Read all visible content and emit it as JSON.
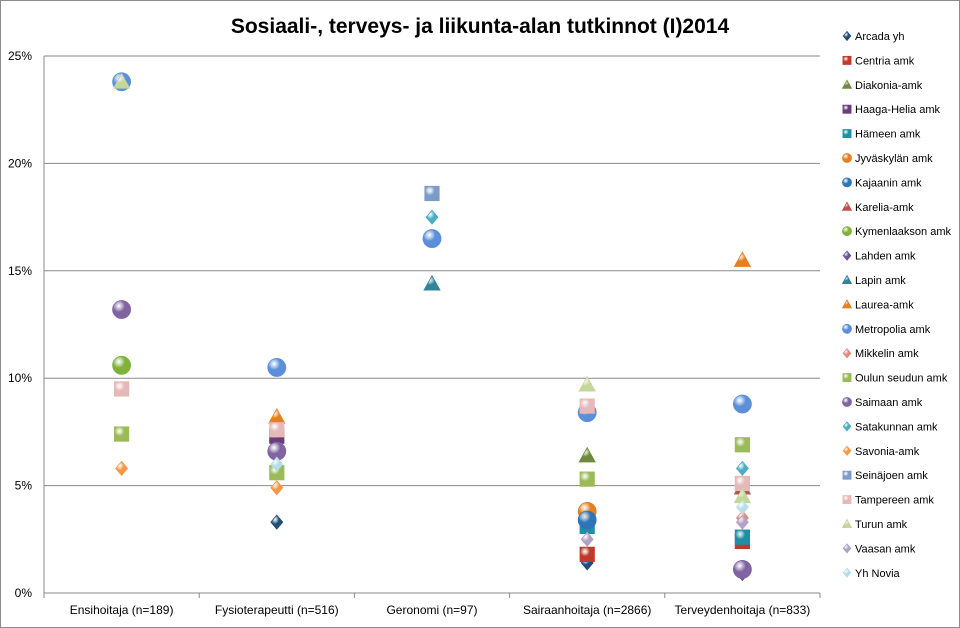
{
  "chart_data": {
    "type": "scatter",
    "title": "Sosiaali-, terveys- ja liikunta-alan tutkinnot (I)2014",
    "categories": [
      "Ensihoitaja (n=189)",
      "Fysioterapeutti (n=516)",
      "Geronomi (n=97)",
      "Sairaanhoitaja (n=2866)",
      "Terveydenhoitaja (n=833)"
    ],
    "yticks": [
      "0%",
      "5%",
      "10%",
      "15%",
      "20%",
      "25%"
    ],
    "ylim": [
      0,
      25
    ],
    "grid": true,
    "legend_position": "right",
    "series": [
      {
        "name": "Arcada yh",
        "shape": "diamond",
        "color": "#1F4E79",
        "values": [
          null,
          3.3,
          null,
          1.4,
          null
        ]
      },
      {
        "name": "Centria amk",
        "shape": "square",
        "color": "#C0392B",
        "values": [
          null,
          null,
          null,
          1.8,
          2.4
        ]
      },
      {
        "name": "Diakonia-amk",
        "shape": "triangle",
        "color": "#6E8B3D",
        "values": [
          null,
          null,
          null,
          6.4,
          null
        ]
      },
      {
        "name": "Haaga-Helia amk",
        "shape": "square",
        "color": "#6A3D7A",
        "values": [
          null,
          7.3,
          null,
          null,
          null
        ]
      },
      {
        "name": "Hämeen amk",
        "shape": "square",
        "color": "#1F8FA6",
        "values": [
          null,
          null,
          null,
          3.1,
          2.6
        ]
      },
      {
        "name": "Jyväskylän amk",
        "shape": "circle",
        "color": "#E67E22",
        "values": [
          null,
          null,
          null,
          3.8,
          null
        ]
      },
      {
        "name": "Kajaanin amk",
        "shape": "circle",
        "color": "#2E75B6",
        "values": [
          null,
          null,
          null,
          3.4,
          null
        ]
      },
      {
        "name": "Karelia-amk",
        "shape": "triangle",
        "color": "#C0504D",
        "values": [
          null,
          null,
          null,
          null,
          4.9
        ]
      },
      {
        "name": "Kymenlaakson amk",
        "shape": "circle",
        "color": "#7FB23B",
        "values": [
          10.6,
          null,
          null,
          null,
          null
        ]
      },
      {
        "name": "Lahden amk",
        "shape": "diamond",
        "color": "#6E4F9A",
        "values": [
          null,
          null,
          null,
          null,
          0.9
        ]
      },
      {
        "name": "Lapin amk",
        "shape": "triangle",
        "color": "#31849B",
        "values": [
          null,
          null,
          14.4,
          null,
          null
        ]
      },
      {
        "name": "Laurea-amk",
        "shape": "triangle",
        "color": "#E67E22",
        "values": [
          null,
          8.2,
          null,
          null,
          15.5
        ]
      },
      {
        "name": "Metropolia amk",
        "shape": "circle",
        "color": "#5B8FD9",
        "values": [
          23.8,
          10.5,
          16.5,
          8.4,
          8.8
        ]
      },
      {
        "name": "Mikkelin amk",
        "shape": "diamond",
        "color": "#E08A7A",
        "values": [
          null,
          null,
          null,
          null,
          3.5
        ]
      },
      {
        "name": "Oulun seudun amk",
        "shape": "square",
        "color": "#9BBB59",
        "values": [
          7.4,
          5.6,
          null,
          5.3,
          6.9
        ]
      },
      {
        "name": "Saimaan amk",
        "shape": "circle",
        "color": "#8064A2",
        "values": [
          13.2,
          6.6,
          null,
          null,
          1.1
        ]
      },
      {
        "name": "Satakunnan amk",
        "shape": "diamond",
        "color": "#4BACC6",
        "values": [
          null,
          null,
          17.5,
          null,
          5.8
        ]
      },
      {
        "name": "Savonia-amk",
        "shape": "diamond",
        "color": "#F79646",
        "values": [
          5.8,
          4.9,
          null,
          null,
          null
        ]
      },
      {
        "name": "Seinäjoen amk",
        "shape": "square",
        "color": "#7A9CC6",
        "values": [
          null,
          null,
          18.6,
          null,
          null
        ]
      },
      {
        "name": "Tampereen amk",
        "shape": "square",
        "color": "#E6B8B7",
        "values": [
          9.5,
          7.6,
          null,
          8.7,
          5.1
        ]
      },
      {
        "name": "Turun amk",
        "shape": "triangle",
        "color": "#C4D79B",
        "values": [
          23.8,
          null,
          null,
          9.7,
          4.5
        ]
      },
      {
        "name": "Vaasan amk",
        "shape": "diamond",
        "color": "#B1A0C7",
        "values": [
          null,
          null,
          null,
          2.5,
          3.3
        ]
      },
      {
        "name": "Yh Novia",
        "shape": "diamond",
        "color": "#B7DEE8",
        "values": [
          null,
          6.0,
          null,
          null,
          4.0
        ]
      }
    ]
  }
}
